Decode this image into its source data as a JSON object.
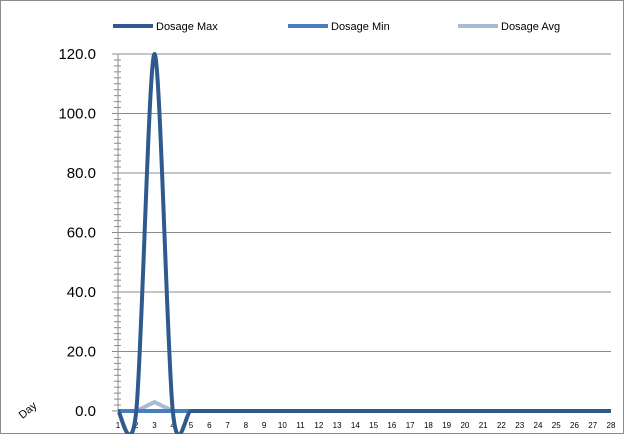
{
  "chart_data": {
    "type": "line",
    "title": "",
    "xlabel": "Day",
    "ylabel": "",
    "x": [
      1,
      2,
      3,
      4,
      5,
      6,
      7,
      8,
      9,
      10,
      11,
      12,
      13,
      14,
      15,
      16,
      17,
      18,
      19,
      20,
      21,
      22,
      23,
      24,
      25,
      26,
      27,
      28
    ],
    "ylim": [
      0,
      120
    ],
    "yticks": [
      "0.0",
      "20.0",
      "40.0",
      "60.0",
      "80.0",
      "100.0",
      "120.0"
    ],
    "grid": true,
    "legend_position": "top",
    "series": [
      {
        "name": "Dosage Max",
        "color": "#2f5a8e",
        "values": [
          0,
          0,
          120,
          0,
          0,
          0,
          0,
          0,
          0,
          0,
          0,
          0,
          0,
          0,
          0,
          0,
          0,
          0,
          0,
          0,
          0,
          0,
          0,
          0,
          0,
          0,
          0,
          0
        ]
      },
      {
        "name": "Dosage Min",
        "color": "#4a7ebb",
        "values": [
          0,
          0,
          0,
          0,
          0,
          0,
          0,
          0,
          0,
          0,
          0,
          0,
          0,
          0,
          0,
          0,
          0,
          0,
          0,
          0,
          0,
          0,
          0,
          0,
          0,
          0,
          0,
          0
        ]
      },
      {
        "name": "Dosage Avg",
        "color": "#a5bbd6",
        "values": [
          0,
          0,
          3,
          0,
          0,
          0,
          0,
          0,
          0,
          0,
          0,
          0,
          0,
          0,
          0,
          0,
          0,
          0,
          0,
          0,
          0,
          0,
          0,
          0,
          0,
          0,
          0,
          0
        ]
      }
    ]
  }
}
